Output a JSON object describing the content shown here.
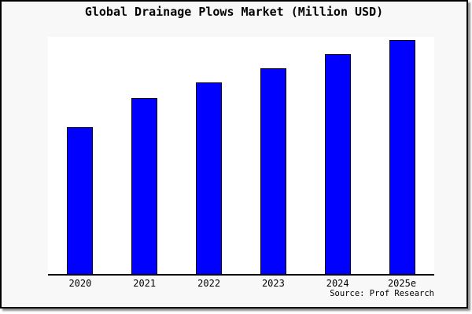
{
  "title": "Global Drainage Plows Market (Million USD)",
  "source_note": "Source: Prof Research",
  "colors": {
    "bar_fill": "#0000ff",
    "bar_border": "#000000",
    "panel_background": "#f8f8f8",
    "plot_background": "#ffffff",
    "axis": "#000000",
    "text": "#000000"
  },
  "chart_data": {
    "type": "bar",
    "title": "Global Drainage Plows Market (Million USD)",
    "categories": [
      "2020",
      "2021",
      "2022",
      "2023",
      "2024",
      "2025e"
    ],
    "values": [
      62.8,
      75.0,
      81.6,
      87.8,
      93.8,
      100.0
    ],
    "value_scale": "relative bar height, % of tallest bar (2025e); no y-axis or value labels shown in chart",
    "xlabel": "",
    "ylabel": "",
    "ylim": [
      0,
      100
    ],
    "grid": false,
    "legend": false,
    "y_axis_shown": false,
    "annotations": [
      "Source: Prof Research"
    ]
  }
}
